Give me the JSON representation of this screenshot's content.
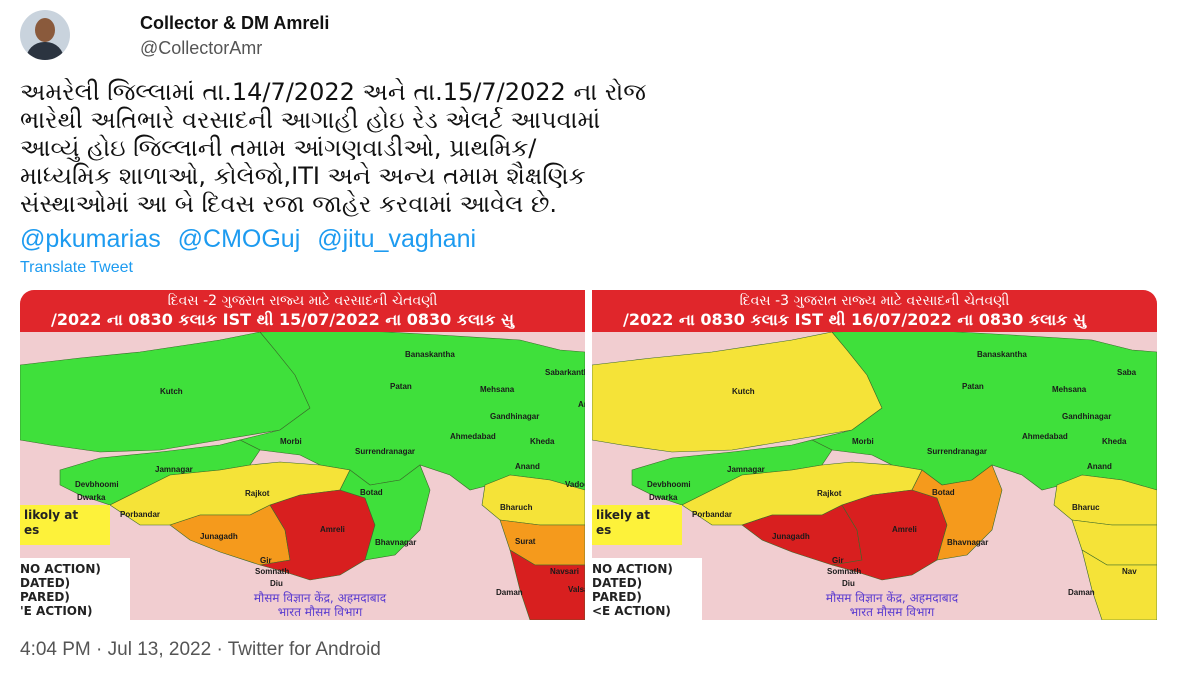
{
  "author": {
    "name": "Collector & DM Amreli",
    "handle": "@CollectorAmr"
  },
  "tweet": {
    "lines": [
      "અમરેલી જિલ્લામાં તા.14/7/2022 અને તા.15/7/2022 ના રોજ",
      "ભારેથી અતિભારે વરસાદની આગાહી હોઇ રેડ એલર્ટ આપવામાં",
      "આવ્યું હોઇ જિલ્લાની તમામ આંગણવાડીઓ, પ્રાથમિક/",
      "માધ્યમિક શાળાઓ, કોલેજો,ITI અને અન્ય તમામ શૈક્ષણિક",
      "સંસ્થાઓમાં આ બે દિવસ રજા જાહેર કરવામાં આવેલ છે."
    ],
    "mentions": [
      "@pkumarias",
      "@CMOGuj",
      "@jitu_vaghani"
    ],
    "translate_label": "Translate Tweet"
  },
  "colors": {
    "green": "#3fe03b",
    "yellow": "#f5e338",
    "orange": "#f59a1c",
    "red": "#d81f1f",
    "header": "#e0262b"
  },
  "maps": [
    {
      "title": "દિવસ -2 ગુજરાત રાજ્ય માટે વરસાદની ચેતવણી",
      "subtitle": "/2022 ના 0830 કલાક IST થી 15/07/2022 ના 0830 કલાક સુ",
      "regions": {
        "kutch": "green",
        "north": "green",
        "jamnagar": "green",
        "rajkot": "yellow",
        "junagadh": "orange",
        "amreli": "red",
        "bhavnagar": "green",
        "bharuch": "yellow",
        "surat": "orange",
        "valsad": "red"
      },
      "legend_note": [
        "likoly at",
        "es"
      ],
      "legend": [
        "NO ACTION)",
        "DATED)",
        "PARED)",
        "'E ACTION)"
      ],
      "imd": [
        "मौसम विज्ञान केंद्र, अहमदाबाद",
        "भारत मौसम विभाग"
      ],
      "labels": [
        "Banaskantha",
        "Sabarkantha",
        "Patan",
        "Mehsana",
        "Kutch",
        "Ara",
        "Gandhinagar",
        "Ahmedabad",
        "Kheda",
        "Morbi",
        "Surrendranagar",
        "Anand",
        "Jamnagar",
        "Devbhoomi",
        "Dwarka",
        "Rajkot",
        "Botad",
        "Vadodara",
        "Porbandar",
        "Bharuch",
        "Junagadh",
        "Amreli",
        "Bhavnagar",
        "Surat",
        "Gir",
        "Somnath",
        "Diu",
        "Navsari",
        "Daman",
        "Valsad"
      ]
    },
    {
      "title": "દિવસ -3 ગુજરાત રાજ્ય માટે વરસાદની ચેતવણી",
      "subtitle": "/2022 ના 0830 કલાક IST થી 16/07/2022 ના 0830 કલાક સુ",
      "regions": {
        "kutch": "yellow",
        "north": "green",
        "jamnagar": "green",
        "rajkot": "yellow",
        "junagadh": "red",
        "amreli": "red",
        "bhavnagar": "orange",
        "bharuch": "yellow",
        "surat": "yellow",
        "valsad": "yellow"
      },
      "legend_note": [
        "likely at",
        "es"
      ],
      "legend": [
        "NO ACTION)",
        "DATED)",
        "PARED)",
        "<E ACTION)"
      ],
      "imd": [
        "मौसम विज्ञान केंद्र, अहमदाबाद",
        "भारत मौसम विभाग"
      ],
      "labels": [
        "Banaskantha",
        "Saba",
        "Patan",
        "Mehsana",
        "Kutch",
        "",
        "Gandhinagar",
        "Ahmedabad",
        "Kheda",
        "Morbi",
        "Surrendranagar",
        "Anand",
        "Jamnagar",
        "Devbhoomi",
        "Dwarka",
        "Rajkot",
        "Botad",
        "",
        "Porbandar",
        "Bharuc",
        "Junagadh",
        "Amreli",
        "Bhavnagar",
        "",
        "Gir",
        "Somnath",
        "Diu",
        "Nav",
        "Daman",
        ""
      ]
    }
  ],
  "footer": {
    "time": "4:04 PM",
    "date": "Jul 13, 2022",
    "source": "Twitter for Android"
  }
}
